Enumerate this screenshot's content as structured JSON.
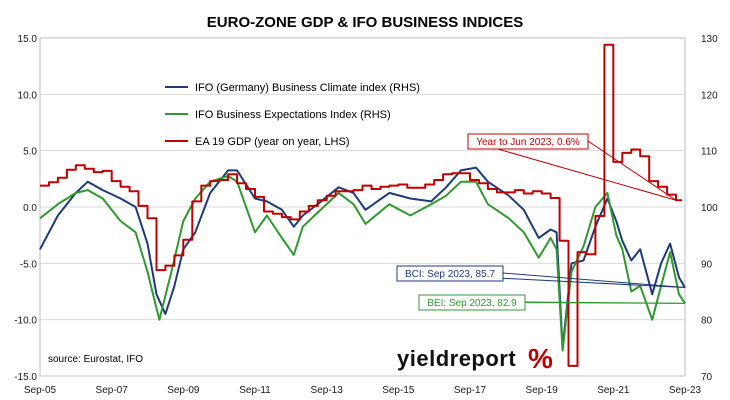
{
  "colors": {
    "bci": "#1f3a7a",
    "bei": "#2e9a2e",
    "gdp": "#c00000",
    "grid": "#d9d9d9",
    "axis_text": "#1a1a1a"
  },
  "chart_data": {
    "type": "line",
    "title": "EURO-ZONE GDP & IFO BUSINESS INDICES",
    "source": "source: Eurostat, IFO",
    "watermark": "yieldreport",
    "watermark_symbol": "%",
    "x_ticks": [
      "Sep-05",
      "Sep-07",
      "Sep-09",
      "Sep-11",
      "Sep-13",
      "Sep-15",
      "Sep-17",
      "Sep-19",
      "Sep-21",
      "Sep-23"
    ],
    "x_range": [
      "2005-09",
      "2023-09"
    ],
    "y_left": {
      "ticks": [
        "15.0",
        "10.0",
        "5.0",
        "0.0",
        "-5.0",
        "-10.0",
        "-15.0"
      ],
      "range": [
        -15,
        15
      ]
    },
    "y_right": {
      "ticks": [
        "130",
        "120",
        "110",
        "100",
        "90",
        "80",
        "70"
      ],
      "range": [
        70,
        130
      ]
    },
    "grid": true,
    "legend_position": "top-left",
    "legend": [
      "IFO (Germany) Business Climate index (RHS)",
      "IFO Business Expectations Index (RHS)",
      "EA 19 GDP (year on year, LHS)"
    ],
    "annotations": [
      "Year to Jun 2023, 0.6%",
      "BCI: Sep 2023, 85.7",
      "BEI: Sep 2023, 82.9"
    ],
    "series": [
      {
        "name": "IFO (Germany) Business Climate index (RHS)",
        "axis": "right",
        "points": [
          [
            "2005-09",
            92.5
          ],
          [
            "2006-03",
            98.5
          ],
          [
            "2006-09",
            102.5
          ],
          [
            "2007-01",
            104.5
          ],
          [
            "2007-06",
            103.0
          ],
          [
            "2007-12",
            101.5
          ],
          [
            "2008-05",
            100.0
          ],
          [
            "2008-09",
            93.5
          ],
          [
            "2008-12",
            84.5
          ],
          [
            "2009-03",
            81.0
          ],
          [
            "2009-06",
            86.0
          ],
          [
            "2009-09",
            92.5
          ],
          [
            "2010-01",
            95.5
          ],
          [
            "2010-06",
            102.5
          ],
          [
            "2010-12",
            106.5
          ],
          [
            "2011-03",
            106.5
          ],
          [
            "2011-09",
            101.5
          ],
          [
            "2012-01",
            101.0
          ],
          [
            "2012-06",
            99.5
          ],
          [
            "2012-10",
            96.5
          ],
          [
            "2013-01",
            98.5
          ],
          [
            "2013-06",
            100.5
          ],
          [
            "2014-01",
            103.5
          ],
          [
            "2014-06",
            102.5
          ],
          [
            "2014-10",
            99.5
          ],
          [
            "2015-06",
            102.5
          ],
          [
            "2016-01",
            101.5
          ],
          [
            "2016-08",
            101.0
          ],
          [
            "2017-01",
            103.5
          ],
          [
            "2017-06",
            106.5
          ],
          [
            "2017-11",
            107.0
          ],
          [
            "2018-03",
            104.5
          ],
          [
            "2018-10",
            102.0
          ],
          [
            "2019-03",
            99.5
          ],
          [
            "2019-08",
            94.5
          ],
          [
            "2019-12",
            96.0
          ],
          [
            "2020-02",
            95.5
          ],
          [
            "2020-04",
            75.0
          ],
          [
            "2020-07",
            90.0
          ],
          [
            "2020-11",
            90.5
          ],
          [
            "2021-03",
            96.5
          ],
          [
            "2021-07",
            101.5
          ],
          [
            "2021-10",
            97.5
          ],
          [
            "2021-12",
            94.0
          ],
          [
            "2022-03",
            90.5
          ],
          [
            "2022-06",
            92.5
          ],
          [
            "2022-10",
            84.5
          ],
          [
            "2023-01",
            90.0
          ],
          [
            "2023-04",
            93.5
          ],
          [
            "2023-07",
            87.5
          ],
          [
            "2023-09",
            85.7
          ]
        ]
      },
      {
        "name": "IFO Business Expectations Index (RHS)",
        "axis": "right",
        "points": [
          [
            "2005-09",
            98.0
          ],
          [
            "2006-03",
            100.5
          ],
          [
            "2006-09",
            102.5
          ],
          [
            "2007-01",
            103.0
          ],
          [
            "2007-06",
            101.5
          ],
          [
            "2007-12",
            97.5
          ],
          [
            "2008-05",
            95.5
          ],
          [
            "2008-09",
            88.5
          ],
          [
            "2008-12",
            82.0
          ],
          [
            "2009-01",
            80.0
          ],
          [
            "2009-05",
            88.5
          ],
          [
            "2009-09",
            97.5
          ],
          [
            "2010-01",
            101.5
          ],
          [
            "2010-06",
            104.5
          ],
          [
            "2010-12",
            105.5
          ],
          [
            "2011-03",
            104.5
          ],
          [
            "2011-09",
            95.5
          ],
          [
            "2012-01",
            98.5
          ],
          [
            "2012-06",
            94.5
          ],
          [
            "2012-10",
            91.5
          ],
          [
            "2013-01",
            96.5
          ],
          [
            "2013-06",
            99.0
          ],
          [
            "2014-01",
            102.5
          ],
          [
            "2014-06",
            100.5
          ],
          [
            "2014-10",
            97.0
          ],
          [
            "2015-06",
            100.5
          ],
          [
            "2016-01",
            98.5
          ],
          [
            "2016-08",
            100.5
          ],
          [
            "2017-01",
            102.0
          ],
          [
            "2017-06",
            104.5
          ],
          [
            "2017-11",
            104.5
          ],
          [
            "2018-03",
            100.5
          ],
          [
            "2018-10",
            98.0
          ],
          [
            "2019-03",
            95.5
          ],
          [
            "2019-08",
            91.0
          ],
          [
            "2019-12",
            94.5
          ],
          [
            "2020-02",
            92.5
          ],
          [
            "2020-04",
            74.5
          ],
          [
            "2020-07",
            88.5
          ],
          [
            "2020-11",
            93.0
          ],
          [
            "2021-03",
            100.0
          ],
          [
            "2021-07",
            102.5
          ],
          [
            "2021-10",
            95.0
          ],
          [
            "2021-12",
            92.5
          ],
          [
            "2022-03",
            85.0
          ],
          [
            "2022-06",
            86.0
          ],
          [
            "2022-10",
            80.0
          ],
          [
            "2023-01",
            86.0
          ],
          [
            "2023-04",
            92.0
          ],
          [
            "2023-07",
            84.5
          ],
          [
            "2023-09",
            82.9
          ]
        ]
      },
      {
        "name": "EA 19 GDP (year on year, LHS)",
        "axis": "left",
        "step": true,
        "points": [
          [
            "2005-09",
            1.9
          ],
          [
            "2005-12",
            2.2
          ],
          [
            "2006-03",
            2.6
          ],
          [
            "2006-06",
            3.3
          ],
          [
            "2006-09",
            3.7
          ],
          [
            "2006-12",
            3.4
          ],
          [
            "2007-03",
            3.1
          ],
          [
            "2007-06",
            3.2
          ],
          [
            "2007-09",
            2.3
          ],
          [
            "2007-12",
            1.8
          ],
          [
            "2008-03",
            1.4
          ],
          [
            "2008-06",
            0.1
          ],
          [
            "2008-09",
            -1.0
          ],
          [
            "2008-12",
            -5.6
          ],
          [
            "2009-03",
            -5.2
          ],
          [
            "2009-06",
            -4.3
          ],
          [
            "2009-09",
            -2.9
          ],
          [
            "2009-12",
            0.5
          ],
          [
            "2010-03",
            1.9
          ],
          [
            "2010-06",
            2.3
          ],
          [
            "2010-09",
            2.4
          ],
          [
            "2010-12",
            2.9
          ],
          [
            "2011-03",
            2.1
          ],
          [
            "2011-06",
            1.6
          ],
          [
            "2011-09",
            0.9
          ],
          [
            "2011-12",
            -0.4
          ],
          [
            "2012-03",
            -0.6
          ],
          [
            "2012-06",
            -0.9
          ],
          [
            "2012-09",
            -1.1
          ],
          [
            "2012-12",
            -0.4
          ],
          [
            "2013-03",
            0.1
          ],
          [
            "2013-06",
            0.6
          ],
          [
            "2013-09",
            1.0
          ],
          [
            "2013-12",
            1.4
          ],
          [
            "2014-03",
            1.4
          ],
          [
            "2014-06",
            1.5
          ],
          [
            "2014-09",
            1.9
          ],
          [
            "2014-12",
            1.6
          ],
          [
            "2015-03",
            1.8
          ],
          [
            "2015-06",
            1.9
          ],
          [
            "2015-09",
            2.0
          ],
          [
            "2015-12",
            1.7
          ],
          [
            "2016-03",
            1.7
          ],
          [
            "2016-06",
            2.0
          ],
          [
            "2016-09",
            2.4
          ],
          [
            "2016-12",
            2.9
          ],
          [
            "2017-03",
            3.0
          ],
          [
            "2017-06",
            3.0
          ],
          [
            "2017-09",
            2.4
          ],
          [
            "2017-12",
            2.1
          ],
          [
            "2018-03",
            1.6
          ],
          [
            "2018-06",
            1.3
          ],
          [
            "2018-09",
            1.3
          ],
          [
            "2018-12",
            1.5
          ],
          [
            "2019-03",
            1.2
          ],
          [
            "2019-06",
            1.4
          ],
          [
            "2019-09",
            1.2
          ],
          [
            "2019-12",
            0.8
          ],
          [
            "2020-03",
            -3.0
          ],
          [
            "2020-06",
            -14.1
          ],
          [
            "2020-09",
            -4.0
          ],
          [
            "2020-12",
            -4.2
          ],
          [
            "2021-03",
            -0.8
          ],
          [
            "2021-06",
            14.4
          ],
          [
            "2021-09",
            4.0
          ],
          [
            "2021-12",
            4.8
          ],
          [
            "2022-03",
            5.1
          ],
          [
            "2022-06",
            4.5
          ],
          [
            "2022-09",
            2.3
          ],
          [
            "2022-12",
            1.8
          ],
          [
            "2023-03",
            1.1
          ],
          [
            "2023-06",
            0.6
          ]
        ]
      }
    ]
  }
}
